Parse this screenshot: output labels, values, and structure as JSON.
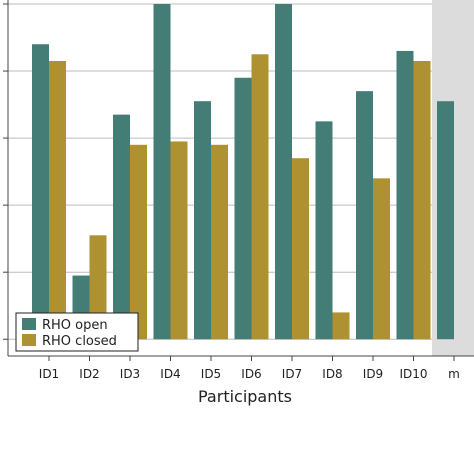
{
  "chart_data": {
    "type": "bar",
    "categories": [
      "ID1",
      "ID2",
      "ID3",
      "ID4",
      "ID5",
      "ID6",
      "ID7",
      "ID8",
      "ID9",
      "ID10",
      "m"
    ],
    "series": [
      {
        "name": "RHO open",
        "color": "#447c76",
        "values": [
          0.88,
          0.19,
          0.67,
          1.0,
          0.71,
          0.78,
          1.0,
          0.65,
          0.74,
          0.86,
          0.71
        ]
      },
      {
        "name": "RHO closed",
        "color": "#ae9131",
        "values": [
          0.83,
          0.31,
          0.58,
          0.59,
          0.58,
          0.85,
          0.54,
          0.08,
          0.48,
          0.83,
          null
        ]
      }
    ],
    "xlabel": "Participants",
    "ylabel": "",
    "ylim": [
      -0.05,
      1.0
    ],
    "y_gridlines": [
      0.0,
      0.2,
      0.4,
      0.6,
      0.8,
      1.0
    ],
    "grid": true,
    "legend_placement": "bottom-left",
    "highlight_band_category": "m",
    "highlight_band_color": "#dcdcdc"
  }
}
